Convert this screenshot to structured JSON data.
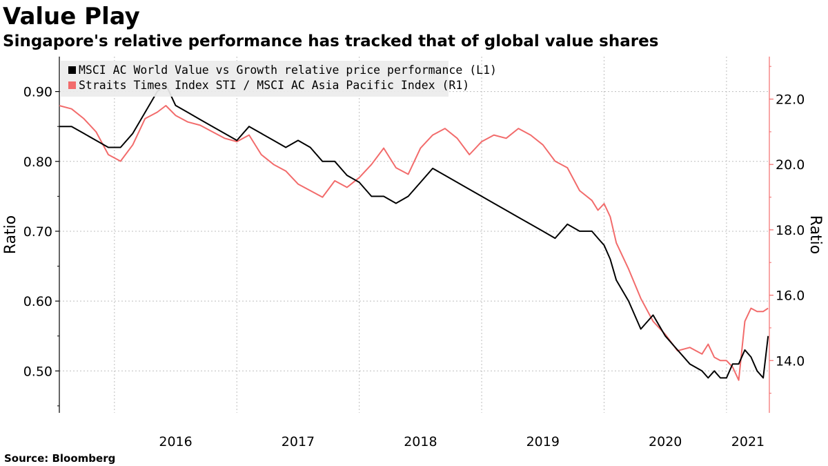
{
  "header": {
    "title": "Value Play",
    "subtitle": "Singapore's relative performance has tracked that of global value shares"
  },
  "footer": {
    "source": "Source: Bloomberg"
  },
  "colors": {
    "series1": "#000000",
    "series2": "#f26b6b",
    "grid": "#bdbdbd",
    "legend_bg": "#ececec"
  },
  "chart_data": {
    "type": "line",
    "title": "Value Play",
    "ylabel_left": "Ratio",
    "ylabel_right": "Ratio",
    "x_range": [
      2015.55,
      2021.35
    ],
    "x_ticks": [
      {
        "label": "2016",
        "pos": 2016.0
      },
      {
        "label": "2017",
        "pos": 2017.0
      },
      {
        "label": "2018",
        "pos": 2018.0
      },
      {
        "label": "2019",
        "pos": 2019.0
      },
      {
        "label": "2020",
        "pos": 2020.0
      },
      {
        "label": "2021",
        "pos": 2021.0
      }
    ],
    "x_year_boundaries": [
      2016.0,
      2017.0,
      2018.0,
      2019.0,
      2020.0,
      2021.0
    ],
    "y_left": {
      "range": [
        0.44,
        0.95
      ],
      "ticks": [
        "0.90",
        "0.80",
        "0.70",
        "0.60",
        "0.50"
      ],
      "tick_values": [
        0.9,
        0.8,
        0.7,
        0.6,
        0.5
      ]
    },
    "y_right": {
      "range": [
        12.4,
        23.3
      ],
      "ticks": [
        "22.0",
        "20.0",
        "18.0",
        "16.0",
        "14.0"
      ],
      "tick_values": [
        22.0,
        20.0,
        18.0,
        16.0,
        14.0
      ]
    },
    "legend_position": "top-left",
    "series": [
      {
        "name": "MSCI AC World Value vs Growth relative price performance (L1)",
        "axis": "left",
        "color": "#000000",
        "x": [
          2015.55,
          2015.65,
          2015.75,
          2015.85,
          2015.95,
          2016.05,
          2016.15,
          2016.25,
          2016.35,
          2016.42,
          2016.5,
          2016.6,
          2016.7,
          2016.8,
          2016.9,
          2017.0,
          2017.1,
          2017.2,
          2017.3,
          2017.4,
          2017.5,
          2017.6,
          2017.7,
          2017.8,
          2017.9,
          2018.0,
          2018.1,
          2018.2,
          2018.3,
          2018.4,
          2018.5,
          2018.6,
          2018.7,
          2018.8,
          2018.9,
          2019.0,
          2019.1,
          2019.2,
          2019.3,
          2019.4,
          2019.5,
          2019.6,
          2019.7,
          2019.8,
          2019.9,
          2019.95,
          2020.0,
          2020.05,
          2020.1,
          2020.2,
          2020.3,
          2020.4,
          2020.5,
          2020.6,
          2020.7,
          2020.8,
          2020.85,
          2020.9,
          2020.95,
          2021.0,
          2021.05,
          2021.1,
          2021.15,
          2021.2,
          2021.25,
          2021.3,
          2021.34
        ],
        "y": [
          0.85,
          0.85,
          0.84,
          0.83,
          0.82,
          0.82,
          0.84,
          0.87,
          0.9,
          0.91,
          0.88,
          0.87,
          0.86,
          0.85,
          0.84,
          0.83,
          0.85,
          0.84,
          0.83,
          0.82,
          0.83,
          0.82,
          0.8,
          0.8,
          0.78,
          0.77,
          0.75,
          0.75,
          0.74,
          0.75,
          0.77,
          0.79,
          0.78,
          0.77,
          0.76,
          0.75,
          0.74,
          0.73,
          0.72,
          0.71,
          0.7,
          0.69,
          0.71,
          0.7,
          0.7,
          0.69,
          0.68,
          0.66,
          0.63,
          0.6,
          0.56,
          0.58,
          0.55,
          0.53,
          0.51,
          0.5,
          0.49,
          0.5,
          0.49,
          0.49,
          0.51,
          0.51,
          0.53,
          0.52,
          0.5,
          0.49,
          0.55
        ]
      },
      {
        "name": "Straits Times Index STI / MSCI AC Asia Pacific Index (R1)",
        "axis": "right",
        "color": "#f26b6b",
        "x": [
          2015.55,
          2015.65,
          2015.75,
          2015.85,
          2015.95,
          2016.05,
          2016.15,
          2016.25,
          2016.35,
          2016.42,
          2016.5,
          2016.6,
          2016.7,
          2016.8,
          2016.9,
          2017.0,
          2017.1,
          2017.2,
          2017.3,
          2017.4,
          2017.5,
          2017.6,
          2017.7,
          2017.8,
          2017.9,
          2018.0,
          2018.1,
          2018.2,
          2018.3,
          2018.4,
          2018.5,
          2018.6,
          2018.7,
          2018.8,
          2018.9,
          2019.0,
          2019.1,
          2019.2,
          2019.3,
          2019.4,
          2019.5,
          2019.6,
          2019.7,
          2019.8,
          2019.9,
          2019.95,
          2020.0,
          2020.05,
          2020.1,
          2020.2,
          2020.3,
          2020.4,
          2020.5,
          2020.6,
          2020.7,
          2020.8,
          2020.85,
          2020.9,
          2020.95,
          2021.0,
          2021.05,
          2021.1,
          2021.15,
          2021.2,
          2021.25,
          2021.3,
          2021.34
        ],
        "y": [
          21.8,
          21.7,
          21.4,
          21.0,
          20.3,
          20.1,
          20.6,
          21.4,
          21.6,
          21.8,
          21.5,
          21.3,
          21.2,
          21.0,
          20.8,
          20.7,
          20.9,
          20.3,
          20.0,
          19.8,
          19.4,
          19.2,
          19.0,
          19.5,
          19.3,
          19.6,
          20.0,
          20.5,
          19.9,
          19.7,
          20.5,
          20.9,
          21.1,
          20.8,
          20.3,
          20.7,
          20.9,
          20.8,
          21.1,
          20.9,
          20.6,
          20.1,
          19.9,
          19.2,
          18.9,
          18.6,
          18.8,
          18.4,
          17.6,
          16.8,
          15.9,
          15.2,
          14.8,
          14.3,
          14.4,
          14.2,
          14.5,
          14.1,
          14.0,
          14.0,
          13.8,
          13.4,
          15.2,
          15.6,
          15.5,
          15.5,
          15.6
        ]
      }
    ]
  }
}
